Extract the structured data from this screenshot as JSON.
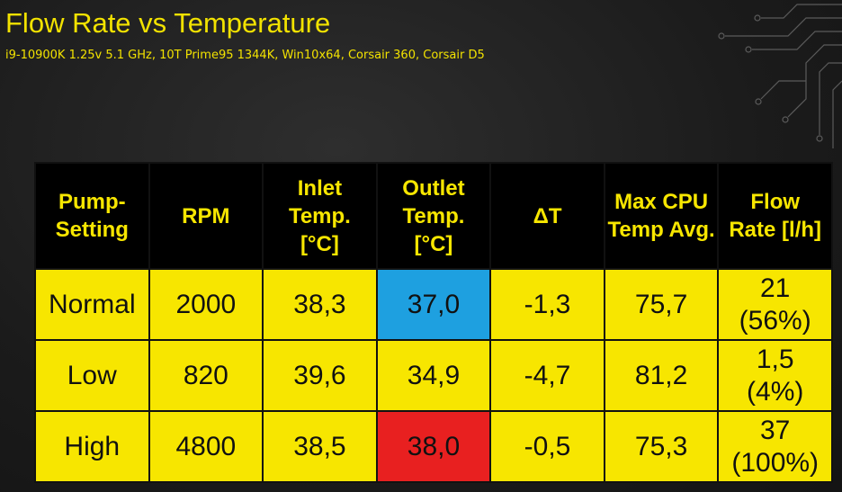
{
  "header": {
    "title": "Flow Rate vs Temperature",
    "subtitle": "i9-10900K 1.25v 5.1 GHz, 10T Prime95 1344K, Win10x64, Corsair 360, Corsair D5"
  },
  "table": {
    "columns": [
      "Pump-\nSetting",
      "RPM",
      "Inlet\nTemp.\n[°C]",
      "Outlet\nTemp.\n[°C]",
      "ΔT",
      "Max CPU\nTemp Avg.",
      "Flow\nRate [l/h]"
    ],
    "rows": [
      [
        "Normal",
        "2000",
        "38,3",
        "37,0",
        "-1,3",
        "75,7",
        "21\n(56%)"
      ],
      [
        "Low",
        "820",
        "39,6",
        "34,9",
        "-4,7",
        "81,2",
        "1,5\n(4%)"
      ],
      [
        "High",
        "4800",
        "38,5",
        "38,0",
        "-0,5",
        "75,3",
        "37\n(100%)"
      ]
    ]
  }
}
